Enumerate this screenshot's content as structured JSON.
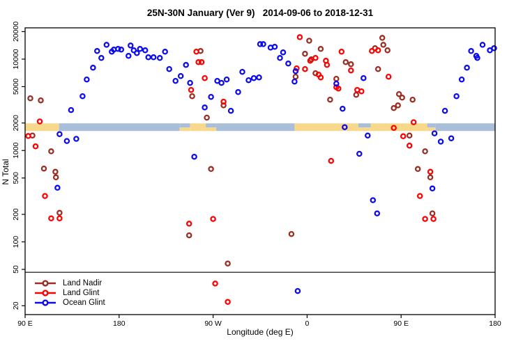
{
  "title": "25N-30N January (Ver 9)   2014-09-06 to 2018-12-31",
  "axes": {
    "x": {
      "label": "Longitude (deg E)",
      "ticks": [
        {
          "lon": 90,
          "label": "90 E"
        },
        {
          "lon": 180,
          "label": "180"
        },
        {
          "lon": 270,
          "label": "90 W"
        },
        {
          "lon": 360,
          "label": "0"
        },
        {
          "lon": 450,
          "label": "90 E"
        },
        {
          "lon": 540,
          "label": "180"
        }
      ]
    },
    "y": {
      "label": "N Total",
      "ticks": [
        20,
        50,
        100,
        200,
        500,
        1000,
        2000,
        5000,
        10000,
        20000
      ]
    }
  },
  "reference_line": {
    "n": 46.5
  },
  "map_band": {
    "center_n": 2000,
    "land_color": "#F8D98C",
    "ocean_color": "#A9BED9",
    "segments": [
      {
        "from": 90,
        "to": 122.5,
        "kind": "land"
      },
      {
        "from": 122.5,
        "to": 238,
        "kind": "ocean"
      },
      {
        "from": 238,
        "to": 248,
        "kind": "mixed"
      },
      {
        "from": 248,
        "to": 263,
        "kind": "land"
      },
      {
        "from": 263,
        "to": 273,
        "kind": "mixed"
      },
      {
        "from": 273,
        "to": 348,
        "kind": "ocean"
      },
      {
        "from": 348,
        "to": 409,
        "kind": "land"
      },
      {
        "from": 409,
        "to": 421,
        "kind": "mixed"
      },
      {
        "from": 421,
        "to": 475,
        "kind": "land"
      },
      {
        "from": 475,
        "to": 483,
        "kind": "mixed"
      },
      {
        "from": 483,
        "to": 540,
        "kind": "ocean"
      }
    ]
  },
  "chart_data": {
    "type": "scatter",
    "title": "25N-30N January (Ver 9)   2014-09-06 to 2018-12-31",
    "xlabel": "Longitude (deg E)",
    "ylabel": "N Total",
    "xlim": [
      90,
      540
    ],
    "ylim": [
      16,
      22000
    ],
    "ylog": true,
    "x_wraps_longitude": "axis runs 90E eastward around globe to 180 (450 deg span)",
    "legend_position": "bottom-left",
    "series": [
      {
        "name": "Land Nadir",
        "color": "#9B2C22",
        "points": [
          [
            95,
            3730
          ],
          [
            105,
            3540
          ],
          [
            97,
            1460
          ],
          [
            115,
            980
          ],
          [
            108,
            634
          ],
          [
            119,
            585
          ],
          [
            119.5,
            508
          ],
          [
            123,
            208
          ],
          [
            258,
            12260
          ],
          [
            250,
            3930
          ],
          [
            264,
            2290
          ],
          [
            280,
            3120
          ],
          [
            268,
            627
          ],
          [
            247,
            118
          ],
          [
            284,
            58
          ],
          [
            362,
            15900
          ],
          [
            373,
            12920
          ],
          [
            358,
            11430
          ],
          [
            364,
            9940
          ],
          [
            368,
            7010
          ],
          [
            349,
            6420
          ],
          [
            388,
            6090
          ],
          [
            397,
            9270
          ],
          [
            402,
            8790
          ],
          [
            382,
            3600
          ],
          [
            407,
            4070
          ],
          [
            425,
            13150
          ],
          [
            345,
            122
          ],
          [
            432,
            17100
          ],
          [
            433,
            14350
          ],
          [
            437,
            12480
          ],
          [
            428,
            7790
          ],
          [
            448,
            4140
          ],
          [
            451,
            3790
          ],
          [
            458,
            1460
          ],
          [
            461,
            3600
          ],
          [
            447,
            3120
          ],
          [
            443,
            2910
          ],
          [
            466,
            627
          ],
          [
            473,
            980
          ],
          [
            478,
            508
          ],
          [
            480,
            205
          ]
        ]
      },
      {
        "name": "Land Glint",
        "color": "#FF0000",
        "points": [
          [
            104,
            2080
          ],
          [
            93,
            1440
          ],
          [
            100,
            1110
          ],
          [
            109,
            318
          ],
          [
            123,
            181
          ],
          [
            115,
            181
          ],
          [
            254,
            12050
          ],
          [
            256,
            9270
          ],
          [
            259,
            9270
          ],
          [
            262,
            6200
          ],
          [
            249,
            4600
          ],
          [
            280,
            3420
          ],
          [
            270,
            178
          ],
          [
            247,
            158
          ],
          [
            272,
            35
          ],
          [
            284,
            22
          ],
          [
            353,
            17380
          ],
          [
            350,
            7920
          ],
          [
            358,
            7790
          ],
          [
            363,
            9600
          ],
          [
            368,
            10290
          ],
          [
            378,
            9600
          ],
          [
            379,
            8640
          ],
          [
            371,
            6770
          ],
          [
            373,
            6310
          ],
          [
            388,
            4930
          ],
          [
            393,
            12050
          ],
          [
            402,
            7520
          ],
          [
            390,
            4760
          ],
          [
            408,
            4600
          ],
          [
            412,
            4440
          ],
          [
            422,
            12260
          ],
          [
            383,
            770
          ],
          [
            428,
            12480
          ],
          [
            438,
            6420
          ],
          [
            443,
            1770
          ],
          [
            462,
            2040
          ],
          [
            452,
            1430
          ],
          [
            458,
            1130
          ],
          [
            478,
            585
          ],
          [
            468,
            318
          ],
          [
            473,
            178
          ],
          [
            481,
            178
          ]
        ]
      },
      {
        "name": "Ocean Glint",
        "color": "#0B0BEE",
        "points": [
          [
            159,
            12260
          ],
          [
            163,
            10290
          ],
          [
            168,
            14350
          ],
          [
            173,
            12050
          ],
          [
            175,
            12700
          ],
          [
            179,
            12920
          ],
          [
            182,
            12700
          ],
          [
            189,
            10850
          ],
          [
            191,
            14100
          ],
          [
            194,
            12480
          ],
          [
            197,
            11630
          ],
          [
            200,
            12920
          ],
          [
            155,
            8060
          ],
          [
            149,
            5990
          ],
          [
            145,
            3930
          ],
          [
            134,
            2770
          ],
          [
            205,
            12480
          ],
          [
            208,
            10480
          ],
          [
            213,
            10480
          ],
          [
            219,
            10290
          ],
          [
            224,
            12050
          ],
          [
            228,
            7790
          ],
          [
            234,
            5780
          ],
          [
            239,
            6540
          ],
          [
            244,
            8640
          ],
          [
            248,
            5490
          ],
          [
            123,
            1510
          ],
          [
            130,
            1270
          ],
          [
            139,
            1340
          ],
          [
            121,
            391
          ],
          [
            274,
            5780
          ],
          [
            278,
            5490
          ],
          [
            283,
            5990
          ],
          [
            298,
            7260
          ],
          [
            304,
            5880
          ],
          [
            309,
            6200
          ],
          [
            314,
            6310
          ],
          [
            315,
            14600
          ],
          [
            268,
            3860
          ],
          [
            262,
            2960
          ],
          [
            294,
            4360
          ],
          [
            287,
            2720
          ],
          [
            252,
            855
          ],
          [
            318,
            14600
          ],
          [
            325,
            13380
          ],
          [
            329,
            13620
          ],
          [
            337,
            11840
          ],
          [
            334,
            10290
          ],
          [
            342,
            8950
          ],
          [
            349,
            7390
          ],
          [
            348,
            5680
          ],
          [
            388,
            5390
          ],
          [
            414,
            6200
          ],
          [
            394,
            2860
          ],
          [
            396,
            1800
          ],
          [
            418,
            1460
          ],
          [
            410,
            920
          ],
          [
            423,
            286
          ],
          [
            427,
            205
          ],
          [
            351,
            29
          ],
          [
            482,
            1540
          ],
          [
            488,
            1250
          ],
          [
            498,
            1360
          ],
          [
            480,
            384
          ],
          [
            492,
            2720
          ],
          [
            503,
            3930
          ],
          [
            508,
            5990
          ],
          [
            513,
            8060
          ],
          [
            517,
            12260
          ],
          [
            522,
            10850
          ],
          [
            523,
            10290
          ],
          [
            528,
            14350
          ],
          [
            535,
            12480
          ],
          [
            539,
            13150
          ]
        ]
      }
    ]
  }
}
